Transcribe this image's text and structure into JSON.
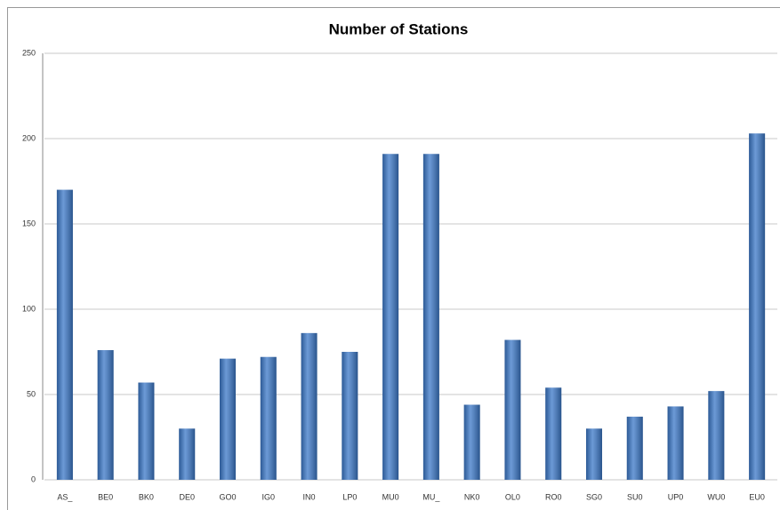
{
  "chart_data": {
    "type": "bar",
    "title": "Number of Stations",
    "categories": [
      "AS_",
      "BE0",
      "BK0",
      "DE0",
      "GO0",
      "IG0",
      "IN0",
      "LP0",
      "MU0",
      "MU_",
      "NK0",
      "OL0",
      "RO0",
      "SG0",
      "SU0",
      "UP0",
      "WU0",
      "EU0"
    ],
    "values": [
      170,
      76,
      57,
      30,
      71,
      72,
      86,
      75,
      191,
      191,
      44,
      82,
      54,
      30,
      37,
      43,
      52,
      203
    ],
    "color": "#3b78c8",
    "ylim": [
      0,
      250
    ],
    "yticks": [
      0,
      50,
      100,
      150,
      200,
      250
    ],
    "grid": true
  }
}
